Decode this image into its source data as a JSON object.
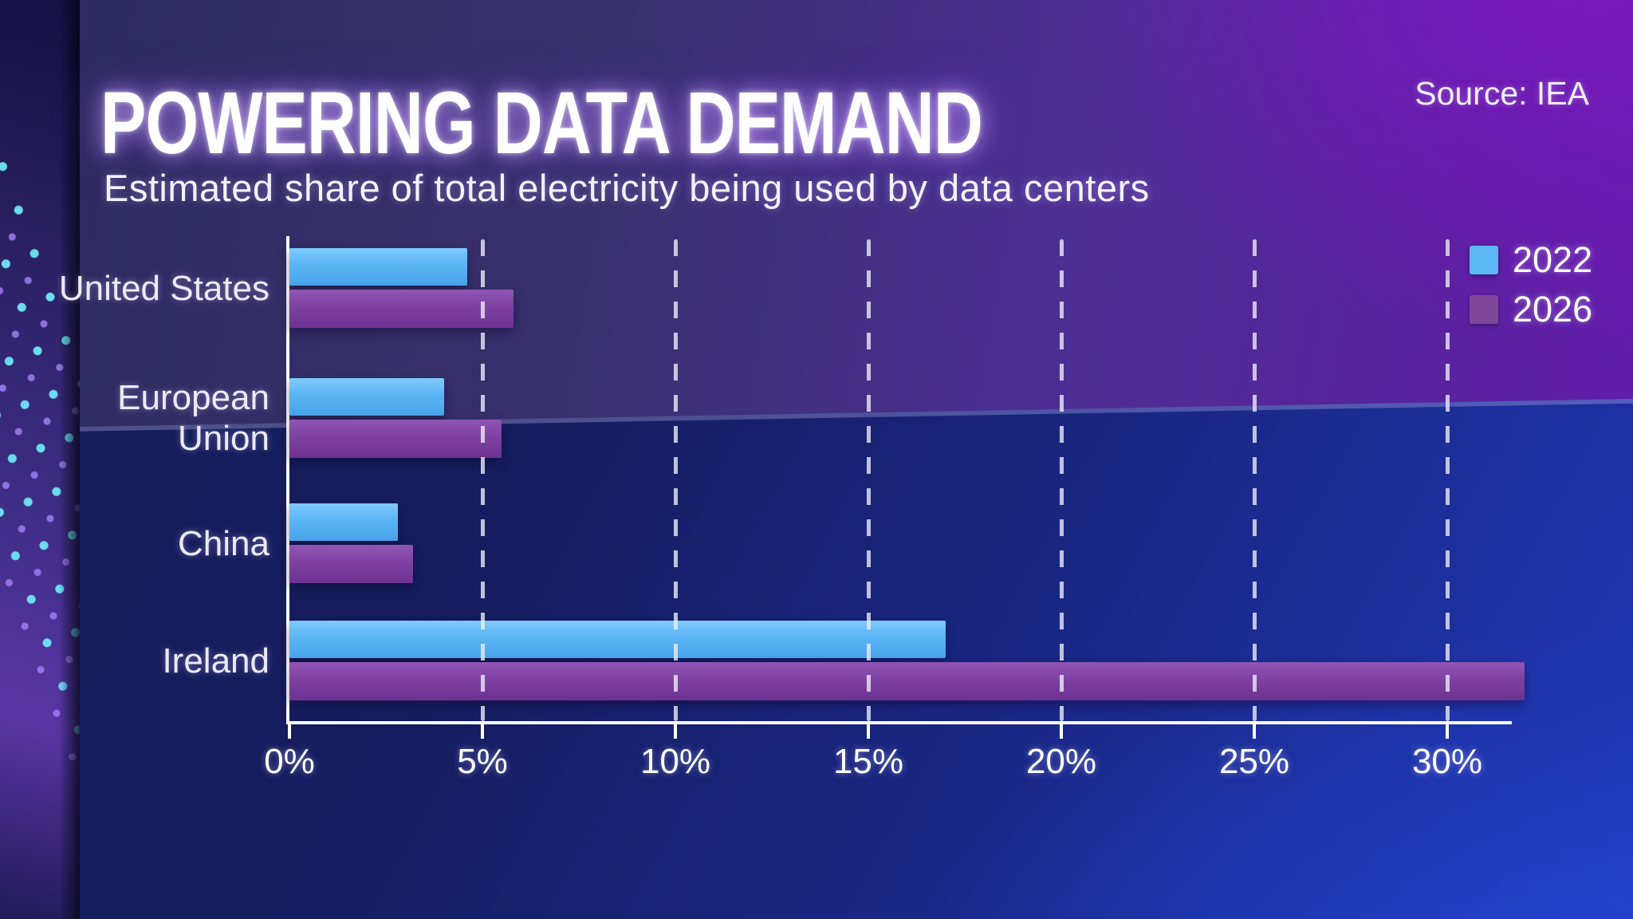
{
  "header": {
    "title": "POWERING DATA DEMAND",
    "subtitle": "Estimated share of total electricity being used by data centers",
    "source": "Source: IEA"
  },
  "legend": {
    "items": [
      {
        "label": "2022",
        "color": "#5bb8f4"
      },
      {
        "label": "2026",
        "color": "#7d4699"
      }
    ]
  },
  "chart_data": {
    "type": "bar",
    "orientation": "horizontal",
    "title": "Estimated share of total electricity being used by data centers",
    "categories": [
      "United States",
      "European Union",
      "China",
      "Ireland"
    ],
    "series": [
      {
        "name": "2022",
        "color": "#5bb8f4",
        "values": [
          4.6,
          4.0,
          2.8,
          17
        ]
      },
      {
        "name": "2026",
        "color": "#7d4699",
        "values": [
          5.8,
          5.5,
          3.2,
          32
        ]
      }
    ],
    "value_unit": "%",
    "x_ticks": [
      {
        "value": 0,
        "label": "0%"
      },
      {
        "value": 5,
        "label": "5%"
      },
      {
        "value": 10,
        "label": "10%"
      },
      {
        "value": 15,
        "label": "15%"
      },
      {
        "value": 20,
        "label": "20%"
      },
      {
        "value": 25,
        "label": "25%"
      },
      {
        "value": 30,
        "label": "30%"
      }
    ],
    "xlim": [
      0,
      32.3
    ],
    "grid": "dashed-vertical",
    "legend_position": "top-right"
  }
}
